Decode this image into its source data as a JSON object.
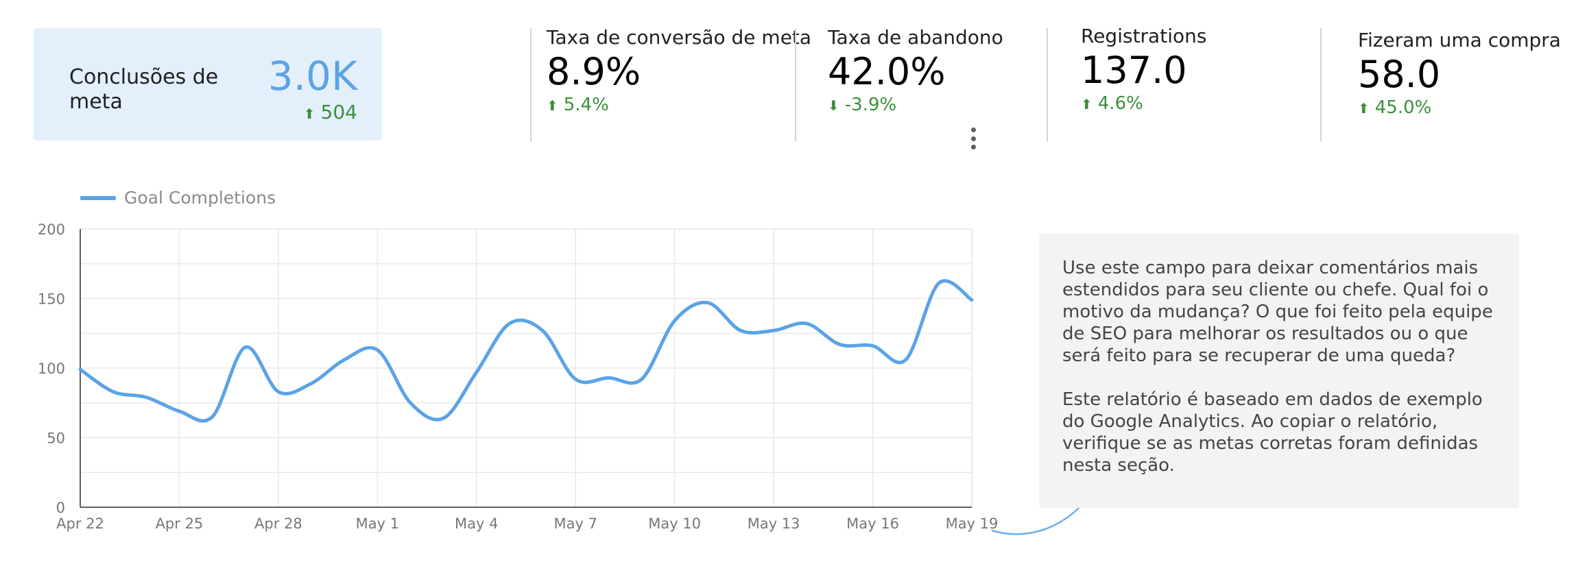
{
  "kpis": {
    "goal_completions": {
      "label": "Conclusões de meta",
      "value": "3.0K",
      "delta": "504",
      "direction": "up"
    },
    "conversion_rate": {
      "label": "Taxa de conversão de meta",
      "value": "8.9%",
      "delta": "5.4%",
      "direction": "up"
    },
    "abandonment_rate": {
      "label": "Taxa de abandono",
      "value": "42.0%",
      "delta": "-3.9%",
      "direction": "down"
    },
    "registrations": {
      "label": "Registrations",
      "value": "137.0",
      "delta": "4.6%",
      "direction": "up"
    },
    "purchases": {
      "label": "Fizeram uma compra",
      "value": "58.0",
      "delta": "45.0%",
      "direction": "up"
    }
  },
  "icons": {
    "up": "arrow-up-icon",
    "down": "arrow-down-icon",
    "menu": "more-vertical-icon"
  },
  "colors": {
    "accent": "#5ba3e6",
    "positive": "#3a8f3a",
    "highlight_bg": "#e3f0fc"
  },
  "comment": {
    "paragraph1": "Use este campo para deixar comentários mais estendidos para seu cliente ou chefe. Qual foi o motivo da mudança? O que foi feito pela equipe de SEO para melhorar os resultados ou o que será feito para se recuperar de uma queda?",
    "paragraph2": "Este relatório é baseado em dados de exemplo do Google Analytics. Ao copiar o relatório, verifique se as metas corretas foram definidas nesta seção."
  },
  "chart_data": {
    "type": "line",
    "legend_position": "top-left",
    "grid": true,
    "ylim": [
      0,
      200
    ],
    "yticks": [
      0,
      50,
      100,
      150,
      200
    ],
    "xtick_labels": [
      "Apr 22",
      "Apr 25",
      "Apr 28",
      "May 1",
      "May 4",
      "May 7",
      "May 10",
      "May 13",
      "May 16",
      "May 19"
    ],
    "x": [
      "Apr 22",
      "Apr 23",
      "Apr 24",
      "Apr 25",
      "Apr 26",
      "Apr 27",
      "Apr 28",
      "Apr 29",
      "Apr 30",
      "May 1",
      "May 2",
      "May 3",
      "May 4",
      "May 5",
      "May 6",
      "May 7",
      "May 8",
      "May 9",
      "May 10",
      "May 11",
      "May 12",
      "May 13",
      "May 14",
      "May 15",
      "May 16",
      "May 17",
      "May 18",
      "May 19"
    ],
    "series": [
      {
        "name": "Goal Completions",
        "color": "#5ba3e6",
        "values": [
          99,
          83,
          79,
          69,
          65,
          115,
          83,
          89,
          106,
          113,
          75,
          64,
          97,
          132,
          127,
          92,
          93,
          92,
          134,
          147,
          127,
          127,
          132,
          117,
          116,
          106,
          161,
          149
        ]
      }
    ]
  }
}
